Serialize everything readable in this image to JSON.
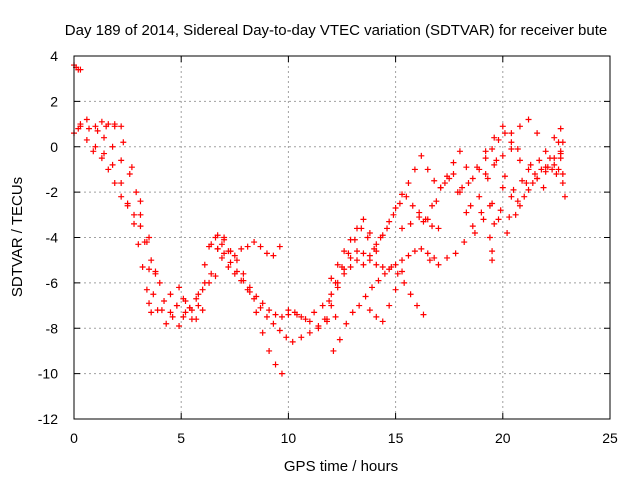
{
  "chart_data": {
    "type": "scatter",
    "title": "Day 189 of 2014, Sidereal Day-to-day VTEC variation (SDTVAR) for receiver bute",
    "xlabel": "GPS time / hours",
    "ylabel": "SDTVAR / TECUs",
    "xlim": [
      0,
      25
    ],
    "ylim": [
      -12,
      4
    ],
    "x_ticks": [
      0,
      5,
      10,
      15,
      20,
      25
    ],
    "y_ticks": [
      -12,
      -10,
      -8,
      -6,
      -4,
      -2,
      0,
      2,
      4
    ],
    "grid": true,
    "legend": "none",
    "marker": "plus",
    "color": "#ff0000",
    "series": [
      {
        "x": [
          0.0,
          0.1,
          0.2,
          0.3
        ],
        "y": [
          3.6,
          3.5,
          3.4,
          3.4
        ]
      },
      {
        "x": [
          0.0,
          0.3,
          0.6,
          1.0,
          1.4,
          1.8,
          2.2,
          2.6,
          2.9,
          3.1,
          3.3,
          3.5,
          3.7,
          3.9
        ],
        "y": [
          0.6,
          0.9,
          1.2,
          0.9,
          0.4,
          0.0,
          -0.6,
          -1.2,
          -2.0,
          -3.0,
          -4.2,
          -5.4,
          -6.5,
          -7.2
        ]
      },
      {
        "x": [
          0.2,
          0.6,
          1.0,
          1.4,
          1.8,
          2.2,
          2.5,
          2.8,
          3.0,
          3.2,
          3.4,
          3.5,
          3.6
        ],
        "y": [
          0.8,
          0.3,
          0.0,
          -0.3,
          -0.8,
          -1.6,
          -2.5,
          -3.4,
          -4.3,
          -5.3,
          -6.3,
          -6.9,
          -7.3
        ]
      },
      {
        "x": [
          0.3,
          0.7,
          1.1,
          1.5,
          1.9,
          2.3,
          2.7,
          3.1,
          3.5,
          3.8
        ],
        "y": [
          1.0,
          0.8,
          0.7,
          0.9,
          1.0,
          0.2,
          -0.9,
          -2.4,
          -4.0,
          -5.5
        ]
      },
      {
        "x": [
          0.9,
          1.3,
          1.6,
          1.9,
          2.2,
          2.5,
          2.8,
          3.1,
          3.4,
          3.6,
          3.8,
          4.0
        ],
        "y": [
          -0.2,
          -0.5,
          -1.0,
          -1.6,
          -2.2,
          -2.6,
          -3.0,
          -3.5,
          -4.2,
          -5.0,
          -5.6,
          -6.0
        ]
      },
      {
        "x": [
          1.3,
          1.6,
          1.9,
          2.2
        ],
        "y": [
          1.1,
          1.0,
          0.9,
          0.9
        ]
      },
      {
        "x": [
          4.1,
          4.3,
          4.6,
          4.9,
          5.2,
          5.5,
          5.8
        ],
        "y": [
          -7.2,
          -7.8,
          -7.5,
          -7.9,
          -7.3,
          -7.6,
          -7.0
        ]
      },
      {
        "x": [
          4.2,
          4.5,
          4.8,
          5.1,
          5.4,
          5.7,
          6.0
        ],
        "y": [
          -6.8,
          -7.3,
          -7.0,
          -7.5,
          -7.1,
          -7.6,
          -7.2
        ]
      },
      {
        "x": [
          4.5,
          4.8,
          5.1,
          5.4,
          5.7,
          6.0,
          6.3,
          6.6
        ],
        "y": [
          -6.5,
          -7.0,
          -6.7,
          -7.1,
          -6.7,
          -6.3,
          -6.0,
          -5.7
        ]
      },
      {
        "x": [
          4.9,
          5.2,
          5.5,
          5.8,
          6.1,
          6.4,
          6.7,
          7.0,
          7.3
        ],
        "y": [
          -6.2,
          -6.8,
          -7.2,
          -6.5,
          -6.0,
          -5.6,
          -4.5,
          -4.0,
          -4.6
        ]
      },
      {
        "x": [
          6.1,
          6.4,
          6.7,
          7.0,
          7.3,
          7.6,
          7.9,
          8.2,
          8.5,
          8.8,
          9.1,
          9.4,
          9.7
        ],
        "y": [
          -5.2,
          -4.3,
          -3.9,
          -4.1,
          -4.6,
          -5.0,
          -5.6,
          -6.4,
          -7.3,
          -8.2,
          -9.0,
          -9.6,
          -10.0
        ]
      },
      {
        "x": [
          6.3,
          6.6,
          6.9,
          7.2,
          7.5,
          7.8,
          8.1,
          8.4,
          8.7,
          9.0,
          9.3,
          9.6
        ],
        "y": [
          -4.4,
          -4.0,
          -4.3,
          -4.6,
          -4.8,
          -4.5,
          -4.4,
          -4.2,
          -4.4,
          -4.7,
          -4.8,
          -4.4
        ]
      },
      {
        "x": [
          6.7,
          7.0,
          7.3,
          7.6,
          7.9,
          8.2,
          8.5,
          8.8,
          9.1,
          9.4,
          9.7,
          10.0,
          10.3,
          10.6,
          11.0,
          11.4,
          11.8,
          12.2
        ],
        "y": [
          -4.5,
          -4.7,
          -5.1,
          -5.5,
          -5.9,
          -6.2,
          -6.6,
          -6.9,
          -7.2,
          -7.4,
          -7.5,
          -7.4,
          -7.3,
          -7.5,
          -7.7,
          -7.9,
          -7.7,
          -7.5
        ]
      },
      {
        "x": [
          6.9,
          7.2,
          7.5,
          7.8,
          8.1,
          8.4,
          8.7,
          9.0,
          9.3,
          9.6,
          9.9,
          10.2,
          10.6,
          11.0,
          11.4,
          11.8
        ],
        "y": [
          -4.9,
          -5.3,
          -5.6,
          -5.9,
          -6.3,
          -6.7,
          -7.1,
          -7.5,
          -7.8,
          -8.1,
          -8.4,
          -8.6,
          -8.4,
          -8.2,
          -8.0,
          -7.6
        ]
      },
      {
        "x": [
          10.0,
          10.4,
          10.8,
          11.2,
          11.6,
          12.0,
          12.3,
          12.6,
          12.9,
          13.2,
          13.5,
          13.8,
          14.1
        ],
        "y": [
          -7.2,
          -7.4,
          -7.6,
          -7.3,
          -7.0,
          -6.5,
          -6.0,
          -5.6,
          -5.3,
          -5.0,
          -5.2,
          -4.8,
          -4.6
        ]
      },
      {
        "x": [
          11.7,
          12.0,
          12.3,
          12.6,
          12.9,
          13.2,
          13.5,
          13.8,
          14.1,
          14.4,
          14.7,
          15.0,
          15.3,
          15.6,
          15.9,
          16.2,
          16.5,
          16.8
        ],
        "y": [
          -7.6,
          -7.0,
          -6.2,
          -5.4,
          -4.9,
          -4.6,
          -4.7,
          -5.0,
          -5.2,
          -5.3,
          -5.4,
          -5.2,
          -5.0,
          -4.8,
          -4.6,
          -4.5,
          -4.7,
          -4.9
        ]
      },
      {
        "x": [
          11.9,
          12.2,
          12.5,
          12.8,
          13.1,
          13.4,
          13.7,
          14.0,
          14.3,
          14.6,
          14.9,
          15.2,
          15.5,
          15.8,
          16.1,
          16.4,
          16.7,
          17.0
        ],
        "y": [
          -6.8,
          -6.0,
          -5.3,
          -4.7,
          -4.1,
          -3.6,
          -4.0,
          -4.5,
          -4.0,
          -3.6,
          -3.0,
          -2.5,
          -2.2,
          -2.6,
          -2.9,
          -3.2,
          -3.5,
          -3.6
        ]
      },
      {
        "x": [
          12.0,
          12.3,
          12.6,
          12.9,
          13.2,
          13.5,
          13.8,
          14.1,
          14.4,
          14.7,
          15.0,
          15.3,
          15.6,
          15.9,
          16.2,
          16.5,
          16.8,
          17.1,
          17.4,
          17.7,
          18.0,
          18.3,
          18.6,
          18.9,
          19.2,
          19.5,
          19.8,
          20.1,
          20.4,
          20.7
        ],
        "y": [
          -5.8,
          -5.2,
          -4.6,
          -4.1,
          -3.6,
          -3.2,
          -3.8,
          -4.3,
          -3.9,
          -3.3,
          -2.7,
          -2.1,
          -1.6,
          -1.0,
          -0.4,
          -1.0,
          -1.5,
          -1.8,
          -1.3,
          -0.7,
          -0.2,
          -0.9,
          -1.4,
          -1.0,
          -0.5,
          -0.1,
          0.3,
          0.6,
          0.2,
          -0.1
        ]
      },
      {
        "x": [
          12.1,
          12.4,
          12.7,
          13.0,
          13.3,
          13.6,
          13.9,
          14.2,
          14.5,
          14.8,
          15.1,
          15.4,
          15.7,
          16.0,
          16.3
        ],
        "y": [
          -9.0,
          -8.5,
          -7.8,
          -7.3,
          -7.0,
          -6.6,
          -6.2,
          -5.9,
          -5.6,
          -5.3,
          -5.6,
          -6.0,
          -6.5,
          -7.0,
          -7.4
        ]
      },
      {
        "x": [
          13.8,
          14.1,
          14.4,
          14.7,
          15.0,
          15.3
        ],
        "y": [
          -7.2,
          -7.5,
          -7.7,
          -7.0,
          -6.3,
          -5.5
        ]
      },
      {
        "x": [
          15.3,
          15.7,
          16.1,
          16.5,
          16.9,
          17.3,
          17.7,
          18.1,
          18.5,
          18.9,
          19.3,
          19.7,
          20.1,
          20.5,
          20.9,
          21.3,
          21.7,
          22.1,
          22.5,
          22.8
        ],
        "y": [
          -3.6,
          -3.4,
          -3.1,
          -3.2,
          -2.4,
          -1.6,
          -1.2,
          -1.8,
          -2.6,
          -2.2,
          -1.4,
          -0.6,
          -1.3,
          -1.9,
          -1.5,
          -0.8,
          -0.6,
          -0.9,
          -1.2,
          -1.6
        ]
      },
      {
        "x": [
          16.3,
          16.7,
          17.1,
          17.5,
          17.9,
          18.3,
          18.7,
          19.1,
          19.5,
          19.9,
          20.3,
          20.7,
          21.1,
          21.5,
          21.9,
          22.3,
          22.7
        ],
        "y": [
          -3.3,
          -2.6,
          -1.8,
          -1.4,
          -2.0,
          -2.9,
          -3.8,
          -3.2,
          -2.5,
          -2.8,
          -3.1,
          -2.4,
          -1.6,
          -1.2,
          -1.8,
          -1.0,
          -0.3
        ]
      },
      {
        "x": [
          16.6,
          17.0,
          17.4,
          17.8,
          18.2,
          18.6,
          19.0,
          19.4,
          19.8,
          20.2,
          20.6,
          21.0,
          21.4,
          21.8,
          22.2,
          22.6
        ],
        "y": [
          -5.0,
          -5.2,
          -4.9,
          -4.7,
          -4.2,
          -3.5,
          -2.9,
          -2.6,
          -3.2,
          -3.8,
          -3.0,
          -2.2,
          -1.6,
          -1.0,
          -0.5,
          0.2
        ]
      },
      {
        "x": [
          18.0,
          18.4,
          18.8,
          19.2,
          19.6,
          20.0,
          20.4,
          20.8,
          21.2,
          21.6,
          22.0,
          22.4,
          22.7
        ],
        "y": [
          -2.0,
          -1.6,
          -0.9,
          -0.2,
          0.4,
          0.9,
          0.6,
          0.9,
          1.2,
          0.6,
          -0.2,
          0.4,
          0.8
        ]
      },
      {
        "x": [
          19.2,
          19.6,
          20.0,
          20.4,
          20.8,
          21.2,
          21.6,
          22.0,
          22.4,
          22.7
        ],
        "y": [
          -1.2,
          -0.8,
          -0.4,
          -0.1,
          -0.6,
          -1.0,
          -1.4,
          -0.9,
          -0.5,
          -0.2
        ]
      },
      {
        "x": [
          19.4,
          19.5,
          19.5,
          19.6
        ],
        "y": [
          -4.0,
          -4.6,
          -5.0,
          -3.4
        ]
      },
      {
        "x": [
          20.0,
          20.4,
          20.8,
          21.2,
          21.6,
          22.0,
          22.4,
          22.8
        ],
        "y": [
          -1.8,
          -2.2,
          -2.6,
          -1.9,
          -1.4,
          -1.1,
          -0.8,
          -1.2
        ]
      },
      {
        "x": [
          22.6,
          22.7,
          22.8,
          22.9
        ],
        "y": [
          -1.0,
          -0.5,
          0.2,
          -2.2
        ]
      }
    ]
  }
}
